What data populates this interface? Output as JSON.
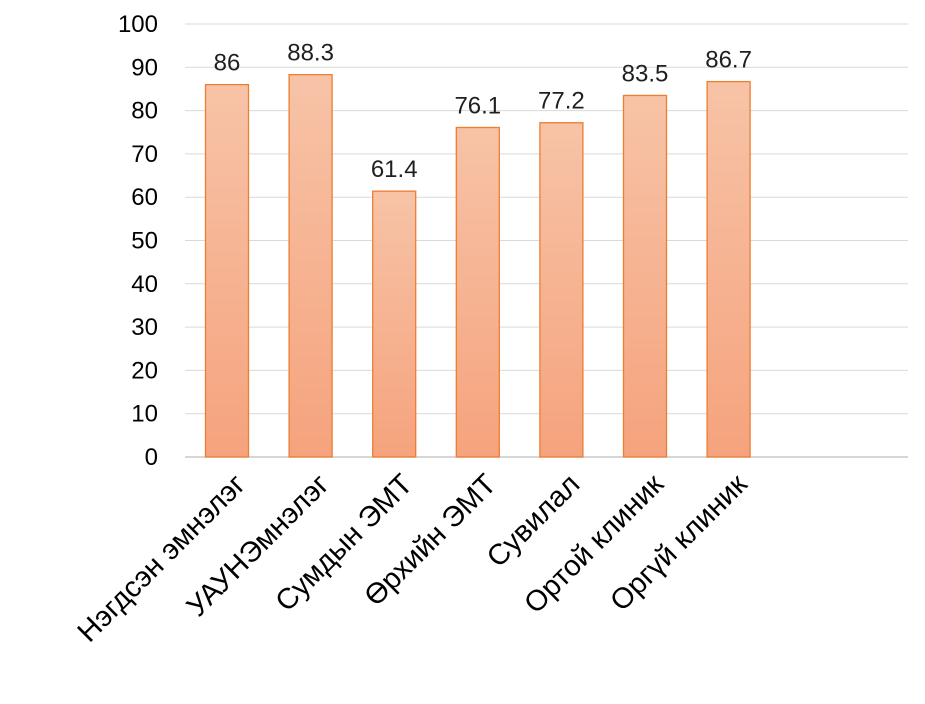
{
  "chart_data": {
    "type": "bar",
    "title": "",
    "xlabel": "",
    "ylabel": "",
    "categories": [
      "Нэгдсэн эмнэлэг",
      "УАУНЭмнэлэг",
      "Сумдын ЭМТ",
      "Өрхийн ЭМТ",
      "Сувилал",
      "Ортой клиник",
      "Оргүй клиник"
    ],
    "values": [
      86,
      88.3,
      61.4,
      76.1,
      77.2,
      83.5,
      86.7
    ],
    "data_labels": [
      "86",
      "88.3",
      "61.4",
      "76.1",
      "77.2",
      "83.5",
      "86.7"
    ],
    "ylim": [
      0,
      100
    ],
    "yticks": [
      0,
      10,
      20,
      30,
      40,
      50,
      60,
      70,
      80,
      90,
      100
    ],
    "grid": true,
    "legend": "none",
    "colors": {
      "bar_fill_top": "#f7c3a7",
      "bar_fill_bottom": "#f5a37d",
      "bar_stroke": "#ed7d31",
      "grid": "#d9d9d9"
    }
  }
}
